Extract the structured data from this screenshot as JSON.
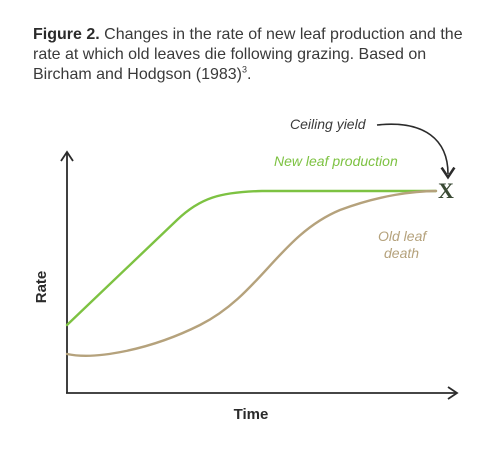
{
  "caption": {
    "label": "Figure 2.",
    "text": " Changes in the rate of new leaf production and the rate at which old leaves die following grazing. Based on Bircham and Hodgson (1983)",
    "superscript": "3",
    "end": "."
  },
  "diagram": {
    "x_axis_label": "Time",
    "y_axis_label": "Rate",
    "curve_new_leaf_label": "New leaf production",
    "curve_old_leaf_label_line1": "Old leaf",
    "curve_old_leaf_label_line2": "death",
    "ceiling_label": "Ceiling yield",
    "ceiling_marker": "X",
    "colors": {
      "new_leaf": "#7dc242",
      "old_leaf": "#b5a27c",
      "axis": "#2b2b2b",
      "ceiling": "#3a4a34"
    }
  }
}
